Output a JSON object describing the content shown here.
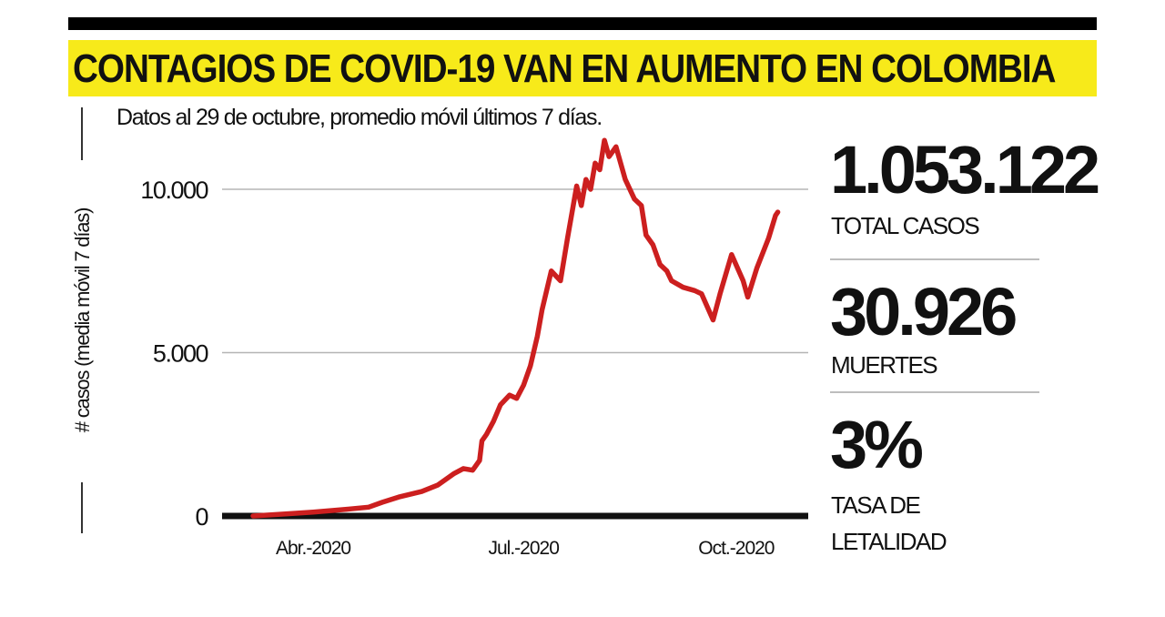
{
  "header": {
    "title": "CONTAGIOS DE COVID-19 VAN EN AUMENTO EN COLOMBIA",
    "subtitle": "Datos al 29 de octubre, promedio móvil últimos 7 días."
  },
  "stats": [
    {
      "value": "1.053.122",
      "label_lines": [
        "TOTAL CASOS"
      ]
    },
    {
      "value": "30.926",
      "label_lines": [
        "MUERTES"
      ]
    },
    {
      "value": "3%",
      "label_lines": [
        "TASA DE",
        "LETALIDAD"
      ]
    }
  ],
  "colors": {
    "line": "#cc1f1f",
    "title_bg": "#f7ea1a",
    "axis": "#111111",
    "grid": "#b5b5b5"
  },
  "chart_data": {
    "type": "line",
    "title": "CONTAGIOS DE COVID-19 VAN EN AUMENTO EN COLOMBIA",
    "ylabel": "# casos (media móvil 7 días)",
    "xlabel": "",
    "ylim": [
      0,
      11800
    ],
    "xlim": [
      "2020-03-06",
      "2020-10-29"
    ],
    "yticks": [
      {
        "value": 0,
        "label": "0"
      },
      {
        "value": 5000,
        "label": "5.000"
      },
      {
        "value": 10000,
        "label": "10.000"
      }
    ],
    "xticks": [
      {
        "date": "2020-04-01",
        "label": "Abr.-2020"
      },
      {
        "date": "2020-07-01",
        "label": "Jul.-2020"
      },
      {
        "date": "2020-10-01",
        "label": "Oct.-2020"
      }
    ],
    "grid": true,
    "series": [
      {
        "name": "casos (media móvil 7 días)",
        "points": [
          [
            "2020-03-06",
            0
          ],
          [
            "2020-03-20",
            60
          ],
          [
            "2020-04-01",
            120
          ],
          [
            "2020-04-15",
            200
          ],
          [
            "2020-04-25",
            270
          ],
          [
            "2020-05-01",
            420
          ],
          [
            "2020-05-08",
            580
          ],
          [
            "2020-05-18",
            750
          ],
          [
            "2020-05-25",
            950
          ],
          [
            "2020-06-01",
            1300
          ],
          [
            "2020-06-05",
            1450
          ],
          [
            "2020-06-09",
            1400
          ],
          [
            "2020-06-12",
            1700
          ],
          [
            "2020-06-13",
            2300
          ],
          [
            "2020-06-15",
            2500
          ],
          [
            "2020-06-18",
            2900
          ],
          [
            "2020-06-21",
            3400
          ],
          [
            "2020-06-25",
            3700
          ],
          [
            "2020-06-28",
            3600
          ],
          [
            "2020-07-01",
            4000
          ],
          [
            "2020-07-04",
            4600
          ],
          [
            "2020-07-07",
            5500
          ],
          [
            "2020-07-09",
            6300
          ],
          [
            "2020-07-13",
            7500
          ],
          [
            "2020-07-17",
            7200
          ],
          [
            "2020-07-20",
            8500
          ],
          [
            "2020-07-24",
            10100
          ],
          [
            "2020-07-26",
            9500
          ],
          [
            "2020-07-28",
            10300
          ],
          [
            "2020-07-30",
            10000
          ],
          [
            "2020-08-01",
            10800
          ],
          [
            "2020-08-03",
            10600
          ],
          [
            "2020-08-05",
            11500
          ],
          [
            "2020-08-07",
            11000
          ],
          [
            "2020-08-10",
            11300
          ],
          [
            "2020-08-14",
            10300
          ],
          [
            "2020-08-18",
            9700
          ],
          [
            "2020-08-21",
            9500
          ],
          [
            "2020-08-23",
            8600
          ],
          [
            "2020-08-26",
            8300
          ],
          [
            "2020-08-29",
            7700
          ],
          [
            "2020-09-01",
            7500
          ],
          [
            "2020-09-03",
            7200
          ],
          [
            "2020-09-08",
            7000
          ],
          [
            "2020-09-13",
            6900
          ],
          [
            "2020-09-16",
            6800
          ],
          [
            "2020-09-21",
            6000
          ],
          [
            "2020-09-24",
            6800
          ],
          [
            "2020-09-29",
            8000
          ],
          [
            "2020-10-04",
            7200
          ],
          [
            "2020-10-06",
            6700
          ],
          [
            "2020-10-10",
            7600
          ],
          [
            "2020-10-15",
            8500
          ],
          [
            "2020-10-18",
            9200
          ],
          [
            "2020-10-19",
            9300
          ]
        ]
      }
    ]
  }
}
